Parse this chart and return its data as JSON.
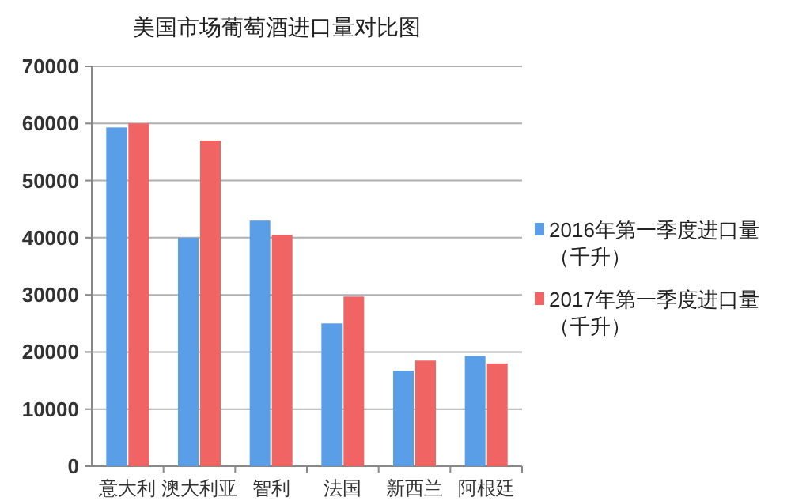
{
  "chart_data": {
    "type": "bar",
    "title": "美国市场葡萄酒进口量对比图",
    "categories": [
      "意大利",
      "澳大利亚",
      "智利",
      "法国",
      "新西兰",
      "阿根廷"
    ],
    "series": [
      {
        "name": "2016年第一季度进口量（千升）",
        "color": "#5a9ee8",
        "values": [
          59300,
          40000,
          43000,
          25000,
          16700,
          19300
        ]
      },
      {
        "name": "2017年第一季度进口量（千升）",
        "color": "#f06464",
        "values": [
          60000,
          57000,
          40500,
          29700,
          18500,
          18000
        ]
      }
    ],
    "ylim": [
      0,
      70000
    ],
    "yticks": [
      0,
      10000,
      20000,
      30000,
      40000,
      50000,
      60000,
      70000
    ],
    "grid": "y",
    "legend": "right"
  }
}
